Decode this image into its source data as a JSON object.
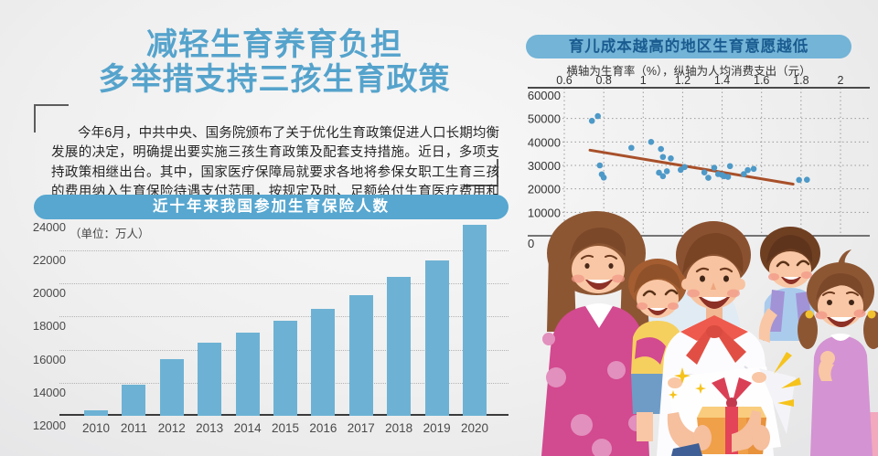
{
  "title": {
    "line1": "减轻生育养育负担",
    "line2": "多举措支持三孩生育政策"
  },
  "intro": {
    "text": "今年6月，中共中央、国务院颁布了关于优化生育政策促进人口长期均衡发展的决定，明确提出要实施三孩生育政策及配套支持措施。近日，多项支持政策相继出台。其中，国家医疗保障局就要求各地将参保女职工生育三孩的费用纳入生育保险待遇支付范围，按规定及时、足额给付生育医疗费用和生育津贴待遇。"
  },
  "colors": {
    "title_blue": "#55a3cc",
    "bar_fill": "#6db2d4",
    "bar_pill_bg": "#57a7d0",
    "bar_pill_text": "#ffffff",
    "scatter_pill_bg": "#73b4d7",
    "scatter_pill_text": "#1a5c90",
    "scatter_dot": "#4d99c8",
    "trend_line": "#a8502a",
    "axis_text": "#4a4a4a"
  },
  "chart_data": [
    {
      "type": "bar",
      "title": "近十年来我国参加生育保险人数",
      "unit_label": "（单位：万人）",
      "categories": [
        "2010",
        "2011",
        "2012",
        "2013",
        "2014",
        "2015",
        "2016",
        "2017",
        "2018",
        "2019",
        "2020"
      ],
      "values": [
        12350,
        13900,
        15450,
        16400,
        17050,
        17750,
        18450,
        19300,
        20400,
        21400,
        23550
      ],
      "ylim": [
        12000,
        24000
      ],
      "ytick_step": 2000,
      "grid": "dotted-horizontal",
      "legend_position": "none"
    },
    {
      "type": "scatter",
      "title": "育儿成本越高的地区生育意愿越低",
      "subtitle": "横轴为生育率（%），纵轴为人均消费支出（元）",
      "xlabel": "生育率（%）",
      "ylabel": "人均消费支出（元）",
      "xlim": [
        0.6,
        2.0
      ],
      "ylim": [
        0,
        60000
      ],
      "xtick_values": [
        0.6,
        0.8,
        1,
        1.2,
        1.4,
        1.6,
        1.8,
        2
      ],
      "xtick_labels": [
        "0.6",
        "0.8",
        "1",
        "1.2",
        "1.4",
        "1.6",
        "1.8",
        "2"
      ],
      "ytick_values": [
        0,
        10000,
        20000,
        30000,
        40000,
        50000,
        60000
      ],
      "ytick_labels": [
        "0",
        "10000",
        "20000",
        "30000",
        "40000",
        "50000",
        "60000"
      ],
      "x_axis_position": "top",
      "grid": "dotted-both",
      "points": [
        [
          0.74,
          49000
        ],
        [
          0.77,
          51000
        ],
        [
          0.78,
          30000
        ],
        [
          0.79,
          26200
        ],
        [
          0.8,
          24800
        ],
        [
          0.94,
          37500
        ],
        [
          1.04,
          40000
        ],
        [
          1.09,
          37000
        ],
        [
          1.1,
          33600
        ],
        [
          1.14,
          33000
        ],
        [
          1.08,
          26900
        ],
        [
          1.1,
          25400
        ],
        [
          1.12,
          27500
        ],
        [
          1.19,
          28100
        ],
        [
          1.21,
          29300
        ],
        [
          1.31,
          27000
        ],
        [
          1.33,
          24700
        ],
        [
          1.36,
          29000
        ],
        [
          1.38,
          26300
        ],
        [
          1.4,
          25900
        ],
        [
          1.41,
          25400
        ],
        [
          1.43,
          25100
        ],
        [
          1.44,
          29700
        ],
        [
          1.51,
          26300
        ],
        [
          1.53,
          28000
        ],
        [
          1.56,
          28500
        ],
        [
          1.79,
          23800
        ],
        [
          1.83,
          23900
        ]
      ],
      "trend": {
        "x1": 0.73,
        "y1": 36500,
        "x2": 1.76,
        "y2": 22000
      }
    }
  ],
  "illustration_palette": {
    "mother_dress": "#d24a90",
    "polka_dot": "#e290bd",
    "boy_yellow_shirt": "#f6d05e",
    "boy_blue_shirt": "#aacbec",
    "suspenders": "#a293d6",
    "girl_dress": "#d493d2",
    "father_shirt": "#fcfcfe",
    "kerchief": "#ee5a4d",
    "gift_box": "#f0a049",
    "gift_lid": "#f9cd7d",
    "ribbon": "#e34458",
    "sparkle": "#f6c31c",
    "skin": "#f9c7a5",
    "hair_brown": "#8d5633"
  }
}
